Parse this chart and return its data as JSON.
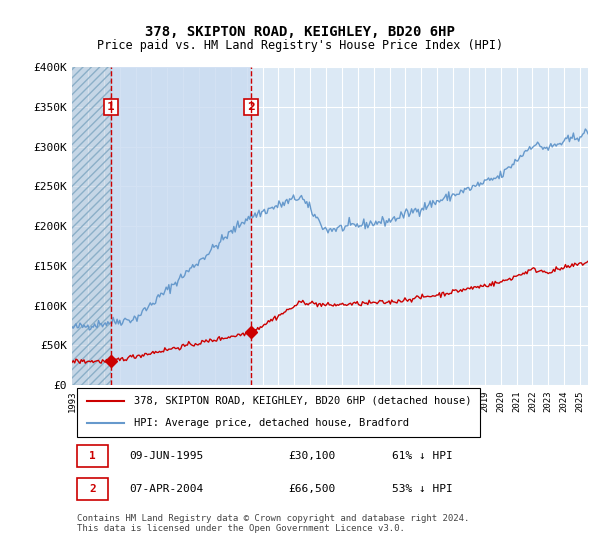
{
  "title": "378, SKIPTON ROAD, KEIGHLEY, BD20 6HP",
  "subtitle": "Price paid vs. HM Land Registry's House Price Index (HPI)",
  "hpi_label": "HPI: Average price, detached house, Bradford",
  "property_label": "378, SKIPTON ROAD, KEIGHLEY, BD20 6HP (detached house)",
  "background_color": "#ffffff",
  "plot_bg_color": "#dce9f5",
  "hatch_color": "#b0c4d8",
  "grid_color": "#ffffff",
  "hpi_color": "#6699cc",
  "price_color": "#cc0000",
  "marker_color": "#cc0000",
  "vline_color": "#cc0000",
  "annotation_color": "#cc0000",
  "purchase1_date_num": 1995.44,
  "purchase1_price": 30100,
  "purchase1_label": "1",
  "purchase2_date_num": 2004.27,
  "purchase2_price": 66500,
  "purchase2_label": "2",
  "ylim": [
    0,
    400000
  ],
  "xlim_start": 1993.0,
  "xlim_end": 2025.5,
  "yticks": [
    0,
    50000,
    100000,
    150000,
    200000,
    250000,
    300000,
    350000,
    400000
  ],
  "ytick_labels": [
    "£0",
    "£50K",
    "£100K",
    "£150K",
    "£200K",
    "£250K",
    "£300K",
    "£350K",
    "£400K"
  ],
  "xtick_years": [
    1993,
    1994,
    1995,
    1996,
    1997,
    1998,
    1999,
    2000,
    2001,
    2002,
    2003,
    2004,
    2005,
    2006,
    2007,
    2008,
    2009,
    2010,
    2011,
    2012,
    2013,
    2014,
    2015,
    2016,
    2017,
    2018,
    2019,
    2020,
    2021,
    2022,
    2023,
    2024,
    2025
  ],
  "footnote": "Contains HM Land Registry data © Crown copyright and database right 2024.\nThis data is licensed under the Open Government Licence v3.0.",
  "table_row1": [
    "1",
    "09-JUN-1995",
    "£30,100",
    "61% ↓ HPI"
  ],
  "table_row2": [
    "2",
    "07-APR-2004",
    "£66,500",
    "53% ↓ HPI"
  ]
}
